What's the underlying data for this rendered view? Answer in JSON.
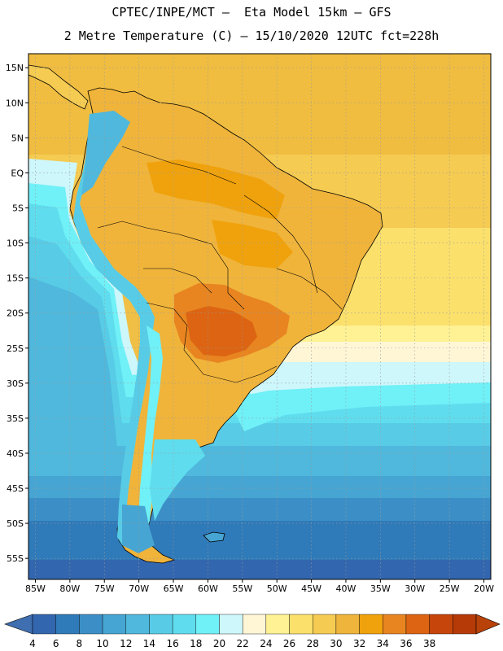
{
  "header": {
    "line1": "CPTEC/INPE/MCT –  Eta Model 15km – GFS",
    "line2": "2 Metre Temperature (C) – 15/10/2020 12UTC fct=228h"
  },
  "map": {
    "lon_range": [
      -86,
      -19
    ],
    "lat_range": [
      -58,
      17
    ],
    "lat_ticks": [
      {
        "value": 15,
        "label": "15N"
      },
      {
        "value": 10,
        "label": "10N"
      },
      {
        "value": 5,
        "label": "5N"
      },
      {
        "value": 0,
        "label": "EQ"
      },
      {
        "value": -5,
        "label": "5S"
      },
      {
        "value": -10,
        "label": "10S"
      },
      {
        "value": -15,
        "label": "15S"
      },
      {
        "value": -20,
        "label": "20S"
      },
      {
        "value": -25,
        "label": "25S"
      },
      {
        "value": -30,
        "label": "30S"
      },
      {
        "value": -35,
        "label": "35S"
      },
      {
        "value": -40,
        "label": "40S"
      },
      {
        "value": -45,
        "label": "45S"
      },
      {
        "value": -50,
        "label": "50S"
      },
      {
        "value": -55,
        "label": "55S"
      }
    ],
    "lon_ticks": [
      {
        "value": -85,
        "label": "85W"
      },
      {
        "value": -80,
        "label": "80W"
      },
      {
        "value": -75,
        "label": "75W"
      },
      {
        "value": -70,
        "label": "70W"
      },
      {
        "value": -65,
        "label": "65W"
      },
      {
        "value": -60,
        "label": "60W"
      },
      {
        "value": -55,
        "label": "55W"
      },
      {
        "value": -50,
        "label": "50W"
      },
      {
        "value": -45,
        "label": "45W"
      },
      {
        "value": -40,
        "label": "40W"
      },
      {
        "value": -35,
        "label": "35W"
      },
      {
        "value": -30,
        "label": "30W"
      },
      {
        "value": -25,
        "label": "25W"
      },
      {
        "value": -20,
        "label": "20W"
      }
    ],
    "gridlines": true,
    "colors": {
      "frame": "#000000",
      "grid": "#9a9a9a",
      "coast": "#000000"
    }
  },
  "colorbar": {
    "labels": [
      "4",
      "6",
      "8",
      "10",
      "12",
      "14",
      "16",
      "18",
      "20",
      "22",
      "24",
      "26",
      "28",
      "30",
      "32",
      "34",
      "36",
      "38"
    ],
    "colors": [
      "#3266ae",
      "#2f7ab9",
      "#3c8fc6",
      "#46a5d2",
      "#4fb8dc",
      "#58cce6",
      "#5fddee",
      "#70f0f7",
      "#cdf7fb",
      "#fff6d6",
      "#fff294",
      "#fbe06c",
      "#f5cb52",
      "#eeb43b",
      "#f0a20d",
      "#e88520",
      "#dc6412",
      "#c6450b",
      "#b53a08"
    ],
    "under_color": "#3f6fb0",
    "over_color": "#b8420a"
  }
}
